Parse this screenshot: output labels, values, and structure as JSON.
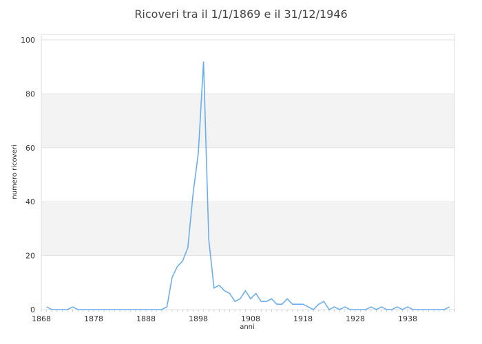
{
  "chart_data": {
    "type": "line",
    "title": "Ricoveri tra il 1/1/1869 e il 31/12/1946",
    "xlabel": "anni",
    "ylabel": "numero ricoveri",
    "xlim": [
      1868,
      1947
    ],
    "ylim": [
      0,
      100
    ],
    "x_ticks": [
      1868,
      1878,
      1888,
      1898,
      1908,
      1918,
      1928,
      1938
    ],
    "y_ticks": [
      0,
      20,
      40,
      60,
      80,
      100
    ],
    "grid": "horizontal bands",
    "line_color": "#6aaef0",
    "band_color": "#f3f3f3",
    "x": [
      1869,
      1870,
      1871,
      1872,
      1873,
      1874,
      1875,
      1876,
      1877,
      1878,
      1879,
      1880,
      1881,
      1882,
      1883,
      1884,
      1885,
      1886,
      1887,
      1888,
      1889,
      1890,
      1891,
      1892,
      1893,
      1894,
      1895,
      1896,
      1897,
      1898,
      1899,
      1900,
      1901,
      1902,
      1903,
      1904,
      1905,
      1906,
      1907,
      1908,
      1909,
      1910,
      1911,
      1912,
      1913,
      1914,
      1915,
      1916,
      1917,
      1918,
      1919,
      1920,
      1921,
      1922,
      1923,
      1924,
      1925,
      1926,
      1927,
      1928,
      1929,
      1930,
      1931,
      1932,
      1933,
      1934,
      1935,
      1936,
      1937,
      1938,
      1939,
      1940,
      1941,
      1942,
      1943,
      1944,
      1945,
      1946
    ],
    "values": [
      1,
      0,
      0,
      0,
      0,
      1,
      0,
      0,
      0,
      0,
      0,
      0,
      0,
      0,
      0,
      0,
      0,
      0,
      0,
      0,
      0,
      0,
      0,
      1,
      12,
      16,
      18,
      23,
      43,
      58,
      92,
      26,
      8,
      9,
      7,
      6,
      3,
      4,
      7,
      4,
      6,
      3,
      3,
      4,
      2,
      2,
      4,
      2,
      2,
      2,
      1,
      0,
      2,
      3,
      0,
      1,
      0,
      1,
      0,
      0,
      0,
      0,
      1,
      0,
      1,
      0,
      0,
      1,
      0,
      1,
      0,
      0,
      0,
      0,
      0,
      0,
      0,
      1
    ]
  }
}
